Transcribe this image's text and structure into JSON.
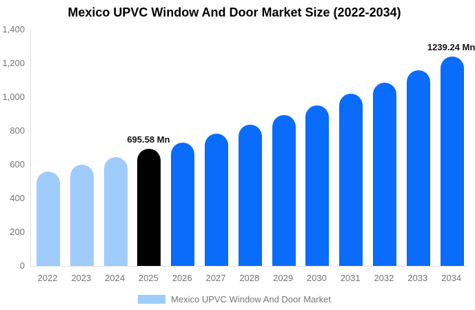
{
  "page": {
    "title": "Mexico UPVC Window And Door Market Size (2022-2034)"
  },
  "legend": {
    "label": "Mexico UPVC Window And Door Market"
  },
  "colors": {
    "background": "#FFFFFF",
    "title_text": "#000000",
    "tick_text": "#757575",
    "axis_line": "#E0E0E0",
    "annotation_text": "#111111",
    "historical_bar": "#9FCCFA",
    "base_year_bar": "#000000",
    "forecast_bar": "#0A6CFA"
  },
  "chart_data": {
    "type": "bar",
    "title": "Mexico UPVC Window And Door Market Size (2022-2034)",
    "unit": "Mn",
    "categories": [
      "2022",
      "2023",
      "2024",
      "2025",
      "2026",
      "2027",
      "2028",
      "2029",
      "2030",
      "2031",
      "2032",
      "2033",
      "2034"
    ],
    "values": [
      560,
      600,
      643,
      695.58,
      732,
      783,
      838,
      894,
      952,
      1020,
      1085,
      1158,
      1239.24
    ],
    "bar_roles": [
      "historical",
      "historical",
      "historical",
      "base_year",
      "forecast",
      "forecast",
      "forecast",
      "forecast",
      "forecast",
      "forecast",
      "forecast",
      "forecast",
      "forecast"
    ],
    "annotations": [
      {
        "index": 3,
        "category": "2025",
        "text": "695.58 Mn"
      },
      {
        "index": 12,
        "category": "2034",
        "text": "1239.24 Mn"
      }
    ],
    "xlabel": "",
    "ylabel": "",
    "ylim": [
      0,
      1400
    ],
    "ytick_labels": [
      "0",
      "200",
      "400",
      "600",
      "800",
      "1,000",
      "1,200",
      "1,400"
    ],
    "grid": false,
    "legend_position": "bottom",
    "legend_entries": [
      "Mexico UPVC Window And Door Market"
    ]
  }
}
